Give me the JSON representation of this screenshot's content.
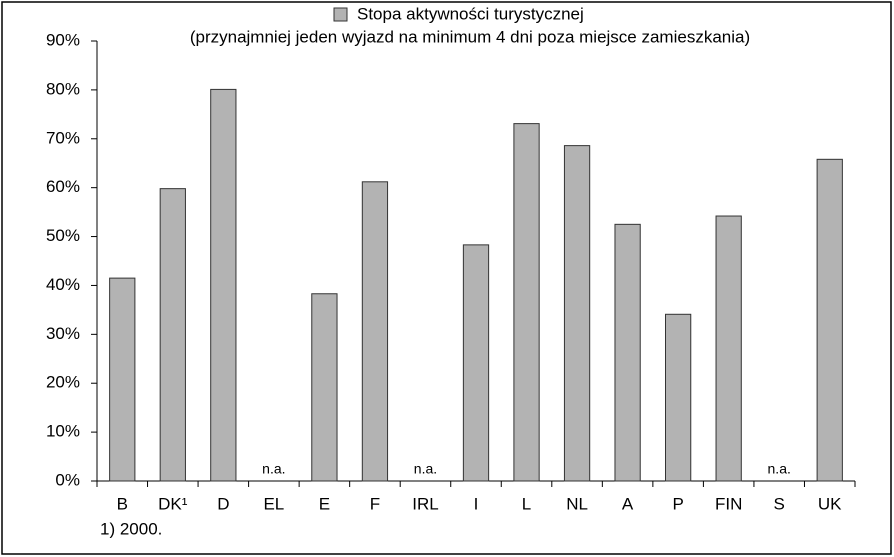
{
  "chart_data": {
    "type": "bar",
    "legend": [
      "Stopa aktywności turystycznej",
      "(przynajmniej jeden wyjazd na minimum 4 dni poza miejsce zamieszkania)"
    ],
    "categories": [
      "B",
      "DK¹",
      "D",
      "EL",
      "E",
      "F",
      "IRL",
      "I",
      "L",
      "NL",
      "A",
      "P",
      "FIN",
      "S",
      "UK"
    ],
    "values": [
      41.5,
      59.8,
      80.1,
      null,
      38.3,
      61.2,
      null,
      48.3,
      73.1,
      68.6,
      52.5,
      34.1,
      54.2,
      null,
      65.8
    ],
    "value_labels": [
      null,
      null,
      null,
      "n.a.",
      null,
      null,
      "n.a.",
      null,
      null,
      null,
      null,
      null,
      null,
      "n.a.",
      null
    ],
    "color": "#b3b3b3",
    "ylim": [
      0,
      90
    ],
    "yticks": [
      {
        "value": 0,
        "label": "0%"
      },
      {
        "value": 10,
        "label": "10%"
      },
      {
        "value": 20,
        "label": "20%"
      },
      {
        "value": 30,
        "label": "30%"
      },
      {
        "value": 40,
        "label": "40%"
      },
      {
        "value": 50,
        "label": "50%"
      },
      {
        "value": 60,
        "label": "60%"
      },
      {
        "value": 70,
        "label": "70%"
      },
      {
        "value": 80,
        "label": "80%"
      },
      {
        "value": 90,
        "label": "90%"
      }
    ],
    "footnote": "1) 2000."
  }
}
